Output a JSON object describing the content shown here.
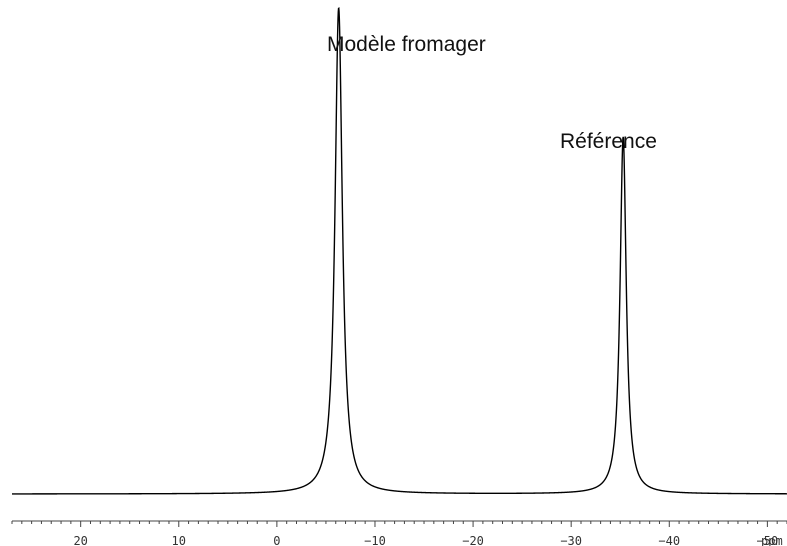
{
  "chart_data": {
    "type": "line",
    "title": "",
    "xlabel": "",
    "ylabel": "",
    "x_unit": "ppm",
    "x_reversed": true,
    "xlim": [
      27,
      -52
    ],
    "ylim": [
      0,
      1.0
    ],
    "xticks": [
      20,
      10,
      0,
      -10,
      -20,
      -30,
      -40,
      -50
    ],
    "xtick_labels": [
      "20",
      "10",
      "0",
      "−10",
      "−20",
      "−30",
      "−40",
      "−50"
    ],
    "minor_tick_step": 1,
    "grid": false,
    "baseline": 0.02,
    "series": [
      {
        "peaks": [
          {
            "center": -6.3,
            "height": 0.98,
            "width": 0.45,
            "label": "Modèle fromager"
          },
          {
            "center": -35.3,
            "height": 0.72,
            "width": 0.38,
            "label": "Référence"
          }
        ]
      }
    ],
    "annotations": [
      {
        "text": "Modèle fromager",
        "peak_index": 0
      },
      {
        "text": "Référence",
        "peak_index": 1
      }
    ]
  },
  "colors": {
    "line": "#000000",
    "axis": "#444444",
    "text": "#111111"
  }
}
